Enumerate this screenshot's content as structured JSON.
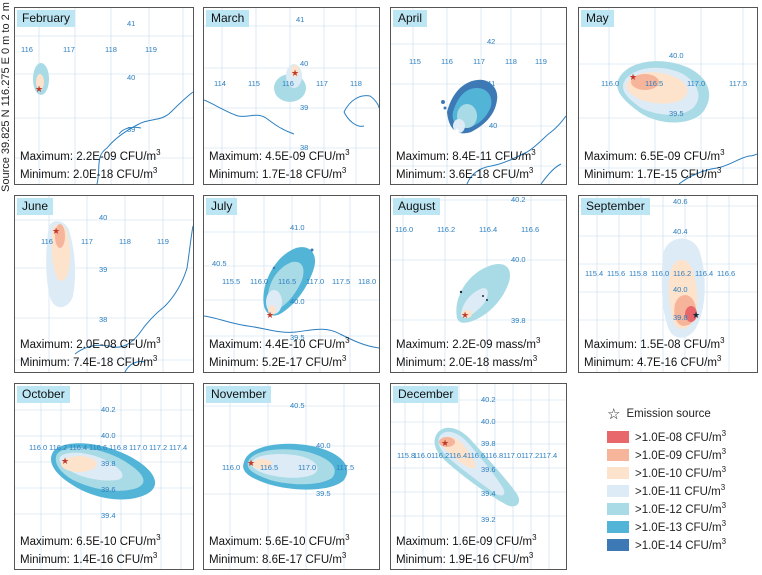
{
  "side_label": "Source 39.825 N 116.275 E 0 m to 2 m",
  "legend": {
    "source_label": "Emission source",
    "items": [
      {
        "label": ">1.0E-08 CFU/m",
        "sup": "3",
        "color": "#e8676a"
      },
      {
        "label": ">1.0E-09 CFU/m",
        "sup": "3",
        "color": "#f6b59a"
      },
      {
        "label": ">1.0E-10 CFU/m",
        "sup": "3",
        "color": "#fde3cc"
      },
      {
        "label": ">1.0E-11 CFU/m",
        "sup": "3",
        "color": "#dcebf6"
      },
      {
        "label": ">1.0E-12 CFU/m",
        "sup": "3",
        "color": "#a9dbe6"
      },
      {
        "label": ">1.0E-13 CFU/m",
        "sup": "3",
        "color": "#52b4d6"
      },
      {
        "label": ">1.0E-14 CFU/m",
        "sup": "3",
        "color": "#3d79b5"
      }
    ]
  },
  "panels": [
    {
      "title": "February",
      "max": "Maximum: 2.2E-09 CFU/m",
      "min": "Minimum: 2.0E-18 CFU/m",
      "sup": "3",
      "labels": [
        "41",
        "116",
        "117",
        "118",
        "119",
        "40",
        "39"
      ]
    },
    {
      "title": "March",
      "max": "Maximum: 4.5E-09 CFU/m",
      "min": "Minimum: 1.7E-18 CFU/m",
      "sup": "3",
      "labels": [
        "41",
        "40",
        "114",
        "115",
        "116",
        "117",
        "118",
        "39",
        "38"
      ]
    },
    {
      "title": "April",
      "max": "Maximum: 8.4E-11 CFU/m",
      "min": "Minimum: 3.6E-18 CFU/m",
      "sup": "3",
      "labels": [
        "42",
        "115",
        "116",
        "117",
        "118",
        "119",
        "41",
        "40"
      ]
    },
    {
      "title": "May",
      "max": "Maximum: 6.5E-09 CFU/m",
      "min": "Minimum: 1.7E-15 CFU/m",
      "sup": "3",
      "labels": [
        "40.0",
        "116.0",
        "116.5",
        "117.0",
        "117.5",
        "39.5"
      ]
    },
    {
      "title": "June",
      "max": "Maximum: 2.0E-08 CFU/m",
      "min": "Minimum: 7.4E-18 CFU/m",
      "sup": "3",
      "labels": [
        "40",
        "116",
        "117",
        "118",
        "119",
        "39",
        "38"
      ]
    },
    {
      "title": "July",
      "max": "Maximum: 4.4E-10 CFU/m",
      "min": "Minimum: 5.2E-17 CFU/m",
      "sup": "3",
      "labels": [
        "41.0",
        "40.5",
        "115.5",
        "116.0",
        "116.5",
        "117.0",
        "117.5",
        "118.0",
        "40.0",
        "39.5"
      ]
    },
    {
      "title": "August",
      "max": "Maximum: 2.2E-09 mass/m",
      "min": "Minimum: 2.0E-18 mass/m",
      "sup": "3",
      "labels": [
        "40.2",
        "116.0",
        "116.2",
        "116.4",
        "116.6",
        "40.0",
        "39.8"
      ]
    },
    {
      "title": "September",
      "max": "Maximum: 1.5E-08 CFU/m",
      "min": "Minimum: 4.7E-16 CFU/m",
      "sup": "3",
      "labels": [
        "40.6",
        "40.4",
        "115.4",
        "115.6",
        "115.8",
        "116.0",
        "116.2",
        "116.4",
        "116.6",
        "40.0",
        "39.8"
      ]
    },
    {
      "title": "October",
      "max": "Maximum: 6.5E-10 CFU/m",
      "min": "Minimum: 1.4E-16 CFU/m",
      "sup": "3",
      "labels": [
        "40.2",
        "40.0",
        "116.0",
        "116.2",
        "116.4",
        "116.6",
        "116.8",
        "117.0",
        "117.2",
        "117.4",
        "39.8",
        "39.6",
        "39.4"
      ]
    },
    {
      "title": "November",
      "max": "Maximum: 5.6E-10 CFU/m",
      "min": "Minimum: 8.6E-17 CFU/m",
      "sup": "3",
      "labels": [
        "40.5",
        "40.0",
        "116.0",
        "116.5",
        "117.0",
        "117.5",
        "39.5"
      ]
    },
    {
      "title": "December",
      "max": "Maximum: 1.6E-09 CFU/m",
      "min": "Minimum: 1.9E-16 CFU/m",
      "sup": "3",
      "labels": [
        "40.2",
        "40.0",
        "115.8",
        "116.0",
        "116.2",
        "116.4",
        "116.6",
        "116.8",
        "117.0",
        "117.2",
        "117.4",
        "39.8",
        "39.6",
        "39.4",
        "39.2"
      ]
    }
  ]
}
